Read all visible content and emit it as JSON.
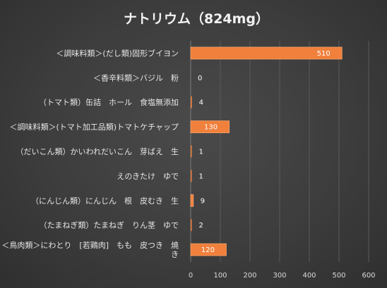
{
  "chart_data": {
    "type": "bar",
    "orientation": "horizontal",
    "title": "ナトリウム（824mg）",
    "categories": [
      [
        "＜調味料類＞(だし類)固形ブイヨン"
      ],
      [
        "＜香辛料類＞バジル　粉"
      ],
      [
        "（トマト類）缶詰　ホール　食塩無添加"
      ],
      [
        "＜調味料類＞(トマト加工品類)トマトケチャップ"
      ],
      [
        "（だいこん類）かいわれだいこん　芽ばえ　生"
      ],
      [
        "えのきたけ　ゆで"
      ],
      [
        "（にんじん類）にんじん　根　皮むき　生"
      ],
      [
        "（たまねぎ類）たまねぎ　りん茎　ゆで"
      ],
      [
        "＜鳥肉類＞にわとり　[若鶏肉]　もも　皮つき　焼",
        "き"
      ]
    ],
    "values": [
      510,
      0,
      4,
      130,
      1,
      1,
      9,
      2,
      120
    ],
    "xlim": [
      0,
      600
    ],
    "xticks": [
      0,
      100,
      200,
      300,
      400,
      500,
      600
    ],
    "grid": true,
    "legend": "none",
    "bar_color": "#f0803c",
    "bar_edge_color": "#f7a36b"
  }
}
